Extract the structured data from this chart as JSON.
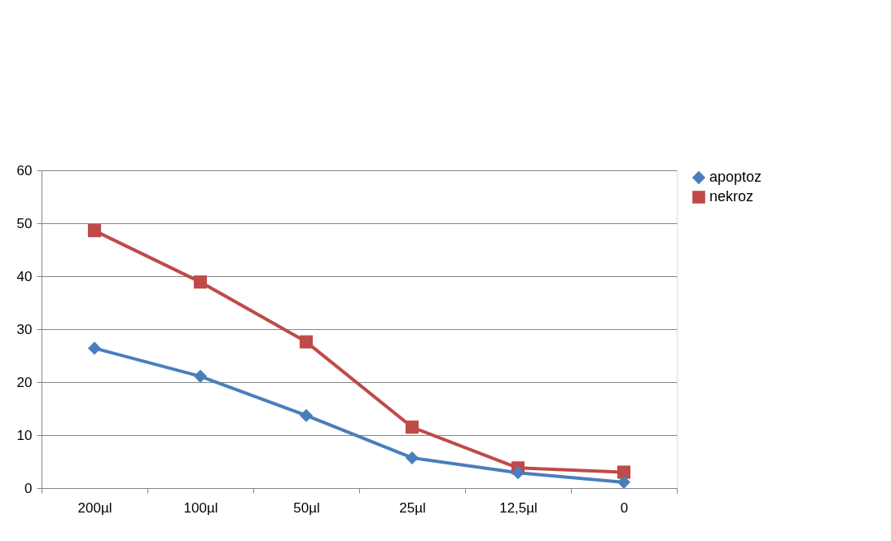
{
  "chart_data": {
    "type": "line",
    "categories": [
      "200µl",
      "100µl",
      "50µl",
      "25µl",
      "12,5µl",
      "0"
    ],
    "series": [
      {
        "name": "apoptoz",
        "color": "#4a7ebb",
        "marker": "diamond",
        "values": [
          26.4,
          21.1,
          13.7,
          5.7,
          2.9,
          1.1
        ]
      },
      {
        "name": "nekroz",
        "color": "#be4b48",
        "marker": "square",
        "values": [
          48.6,
          38.9,
          27.6,
          11.5,
          3.8,
          3.0
        ]
      }
    ],
    "ylim": [
      0,
      60
    ],
    "yticks": [
      0,
      10,
      20,
      30,
      40,
      50,
      60
    ],
    "grid": "y",
    "legend": "right",
    "line_style": "solid"
  }
}
